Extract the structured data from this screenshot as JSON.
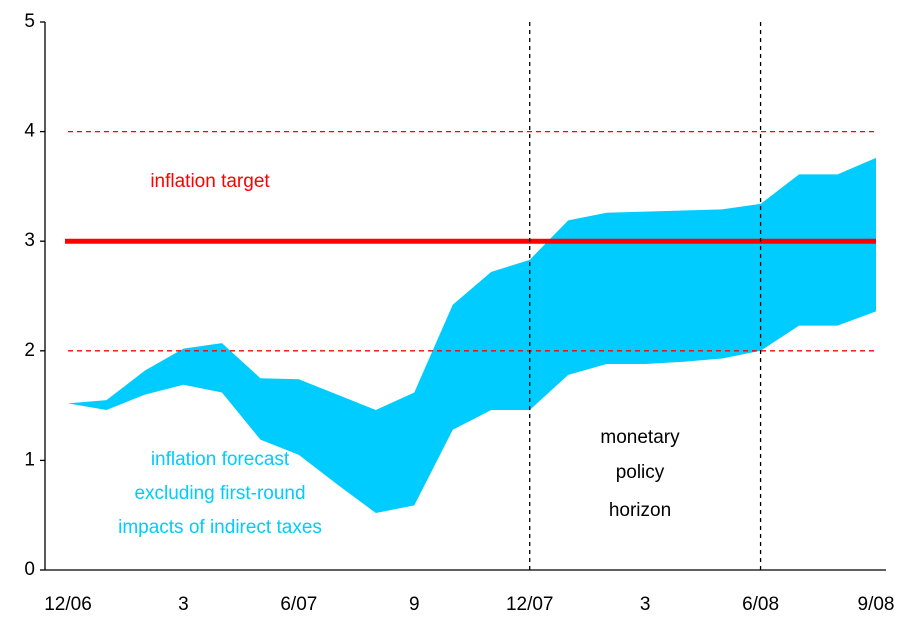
{
  "chart_data": {
    "type": "range_area",
    "categories": [
      "12/06",
      null,
      null,
      "3",
      null,
      null,
      "6/07",
      null,
      null,
      "9",
      null,
      null,
      "12/07",
      null,
      null,
      "3",
      null,
      null,
      "6/08",
      null,
      null,
      "9/08"
    ],
    "band": {
      "label": [
        "inflation forecast",
        "excluding first-round",
        "impacts of indirect taxes"
      ],
      "color": "#00ccff",
      "upper": [
        1.52,
        1.55,
        1.82,
        2.02,
        2.07,
        1.75,
        1.74,
        1.6,
        1.46,
        1.62,
        2.42,
        2.72,
        2.83,
        3.19,
        3.26,
        3.27,
        3.28,
        3.29,
        3.34,
        3.61,
        3.61,
        3.76
      ],
      "lower": [
        1.52,
        1.46,
        1.6,
        1.69,
        1.62,
        1.19,
        1.05,
        0.78,
        0.52,
        0.59,
        1.28,
        1.46,
        1.46,
        1.78,
        1.88,
        1.88,
        1.9,
        1.93,
        2.0,
        2.23,
        2.23,
        2.36
      ]
    },
    "target": {
      "label": "inflation target",
      "value": 3,
      "tolerance": [
        2,
        4
      ],
      "color": "#ff0000"
    },
    "horizon": {
      "label": [
        "monetary",
        "policy",
        "horizon"
      ],
      "from": "12/07",
      "to": "6/08"
    },
    "ylim": [
      0,
      5
    ],
    "yticks": [
      0,
      1,
      2,
      3,
      4,
      5
    ]
  }
}
